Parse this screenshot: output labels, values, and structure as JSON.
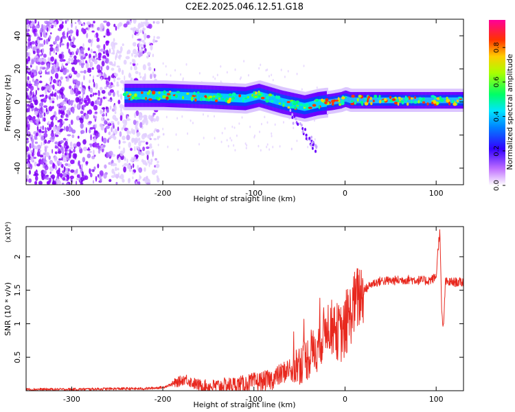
{
  "figure": {
    "title": "C2E2.2025.046.12.51.G18"
  },
  "chart_data": [
    {
      "type": "heatmap",
      "xlabel": "Height of straight line (km)",
      "ylabel": "Frequency (Hz)",
      "xlim": [
        -350,
        130
      ],
      "ylim": [
        -50,
        50
      ],
      "x_ticks": [
        -300,
        -200,
        -100,
        0,
        100
      ],
      "y_ticks": [
        40,
        20,
        0,
        -20,
        -40
      ],
      "colorbar": {
        "label": "Normalized spectral amplitude",
        "range": [
          0.0,
          0.96
        ],
        "ticks": [
          0.0,
          0.2,
          0.4,
          0.6,
          0.8
        ],
        "colors": [
          "#ffffff",
          "#9d00ff",
          "#0033ff",
          "#00e5ff",
          "#00ff44",
          "#ffee00",
          "#ff2a00",
          "#ff0096"
        ]
      },
      "grid": false,
      "features": {
        "noise_region_x": [
          -350,
          -215
        ],
        "signal_band_start_x": -242,
        "signal_center_hz": [
          [
            -242,
            4
          ],
          [
            -200,
            4
          ],
          [
            -150,
            3
          ],
          [
            -110,
            2
          ],
          [
            -95,
            4
          ],
          [
            -70,
            0
          ],
          [
            -45,
            -3
          ],
          [
            -30,
            -1
          ],
          [
            -15,
            0
          ],
          [
            -5,
            1
          ],
          [
            0,
            2
          ],
          [
            5,
            1
          ],
          [
            40,
            1
          ],
          [
            100,
            1
          ],
          [
            130,
            1
          ]
        ]
      }
    },
    {
      "type": "line",
      "xlabel": "Height of straight line (km)",
      "ylabel": "SNR (10 * v/v)",
      "y_multiplier": "(x10⁴)",
      "xlim": [
        -350,
        130
      ],
      "ylim": [
        0,
        2.45
      ],
      "x_ticks": [
        -300,
        -200,
        -100,
        0,
        100
      ],
      "y_ticks": [
        0.5,
        1.0,
        1.5,
        2.0
      ],
      "grid": false,
      "series": [
        {
          "color": "#e8281e",
          "x": [
            -350,
            -300,
            -250,
            -220,
            -200,
            -185,
            -175,
            -168,
            -160,
            -150,
            -130,
            -110,
            -100,
            -90,
            -80,
            -70,
            -60,
            -50,
            -40,
            -30,
            -25,
            -20,
            -15,
            -10,
            -5,
            0,
            5,
            10,
            15,
            20,
            25,
            30,
            35,
            40,
            50,
            60,
            70,
            80,
            90,
            95,
            100,
            102,
            104,
            106,
            108,
            110,
            120,
            130
          ],
          "values": [
            0.02,
            0.02,
            0.03,
            0.03,
            0.05,
            0.12,
            0.18,
            0.12,
            0.08,
            0.06,
            0.08,
            0.1,
            0.13,
            0.14,
            0.17,
            0.25,
            0.34,
            0.4,
            0.5,
            0.65,
            0.8,
            1.0,
            0.95,
            0.9,
            0.85,
            0.9,
            1.1,
            1.3,
            1.4,
            1.48,
            1.55,
            1.6,
            1.62,
            1.64,
            1.64,
            1.65,
            1.66,
            1.65,
            1.64,
            1.66,
            1.7,
            2.1,
            2.4,
            1.2,
            0.9,
            1.62,
            1.62,
            1.62
          ]
        }
      ]
    }
  ]
}
